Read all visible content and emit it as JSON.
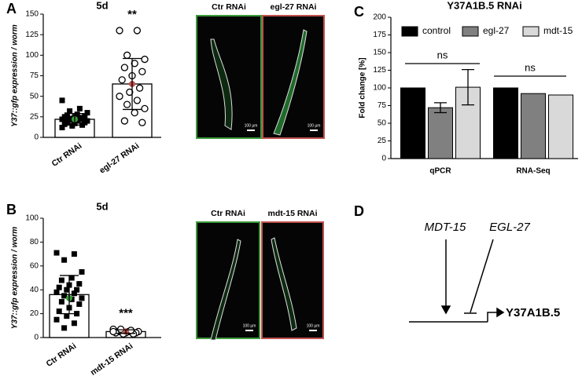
{
  "panel_labels": [
    "A",
    "B",
    "C",
    "D"
  ],
  "chart_data": [
    {
      "type": "bar_points",
      "title": "5d",
      "y_label": "Y37::gfp expression / worm",
      "categories": [
        "Ctr RNAi",
        "egl-27 RNAi"
      ],
      "values": [
        22,
        65
      ],
      "errors": [
        7,
        31
      ],
      "points": [
        [
          45,
          35,
          32,
          30,
          28,
          27,
          26,
          25,
          25,
          24,
          23,
          22,
          22,
          21,
          20,
          20,
          19,
          18,
          17,
          16,
          15,
          14,
          12
        ],
        [
          130,
          130,
          100,
          95,
          90,
          85,
          80,
          75,
          70,
          60,
          55,
          50,
          45,
          40,
          35,
          30,
          20,
          18
        ]
      ],
      "markers": [
        "square",
        "circle"
      ],
      "highlight_values": [
        22,
        65
      ],
      "highlight_colors": [
        "#3a9a3a",
        "#c0504d"
      ],
      "significance": "**",
      "ylim": [
        0,
        150
      ],
      "yticks": [
        0,
        25,
        50,
        75,
        100,
        125,
        150
      ]
    },
    {
      "type": "bar_points",
      "title": "5d",
      "y_label": "Y37::gfp expression / worm",
      "categories": [
        "Ctr RNAi",
        "mdt-15 RNAi"
      ],
      "values": [
        36,
        5
      ],
      "errors": [
        16,
        1.5
      ],
      "points": [
        [
          71,
          70,
          65,
          55,
          50,
          48,
          45,
          44,
          42,
          40,
          40,
          38,
          37,
          35,
          33,
          32,
          30,
          28,
          25,
          22,
          20,
          18,
          15,
          12,
          8
        ],
        [
          7,
          6,
          6,
          5,
          5,
          5,
          4,
          4,
          4,
          3,
          3,
          5,
          6,
          7
        ]
      ],
      "markers": [
        "square",
        "circle"
      ],
      "highlight_values": [
        33,
        5
      ],
      "highlight_colors": [
        "#3a9a3a",
        "#c0504d"
      ],
      "significance": "***",
      "ylim": [
        0,
        100
      ],
      "yticks": [
        0,
        20,
        40,
        60,
        80,
        100
      ]
    },
    {
      "type": "grouped_bar",
      "title": "Y37A1B.5 RNAi",
      "y_label": "Fold change [%]",
      "categories": [
        "qPCR",
        "RNA-Seq"
      ],
      "series": [
        {
          "name": "control",
          "color": "#000000",
          "values": [
            100,
            100
          ],
          "errors": [
            null,
            null
          ]
        },
        {
          "name": "egl-27",
          "color": "#808080",
          "values": [
            72,
            92
          ],
          "errors": [
            7,
            null
          ]
        },
        {
          "name": "mdt-15",
          "color": "#d9d9d9",
          "values": [
            101,
            90
          ],
          "errors": [
            25,
            null
          ]
        }
      ],
      "annotations": [
        "ns",
        "ns"
      ],
      "ylim": [
        0,
        200
      ],
      "yticks": [
        0,
        25,
        50,
        75,
        100,
        125,
        150,
        175,
        200
      ]
    }
  ],
  "images": [
    {
      "label": "Ctr RNAi",
      "scale": "100 µm",
      "border": "#3a9a3a"
    },
    {
      "label": "egl-27 RNAi",
      "scale": "100 µm",
      "border": "#c0504d"
    },
    {
      "label": "Ctr RNAi",
      "scale": "100 µm",
      "border": "#3a9a3a"
    },
    {
      "label": "mdt-15 RNAi",
      "scale": "100 µm",
      "border": "#c0504d"
    }
  ],
  "diagram": {
    "activator": "MDT-15",
    "repressor": "EGL-27",
    "gene": "Y37A1B.5"
  }
}
